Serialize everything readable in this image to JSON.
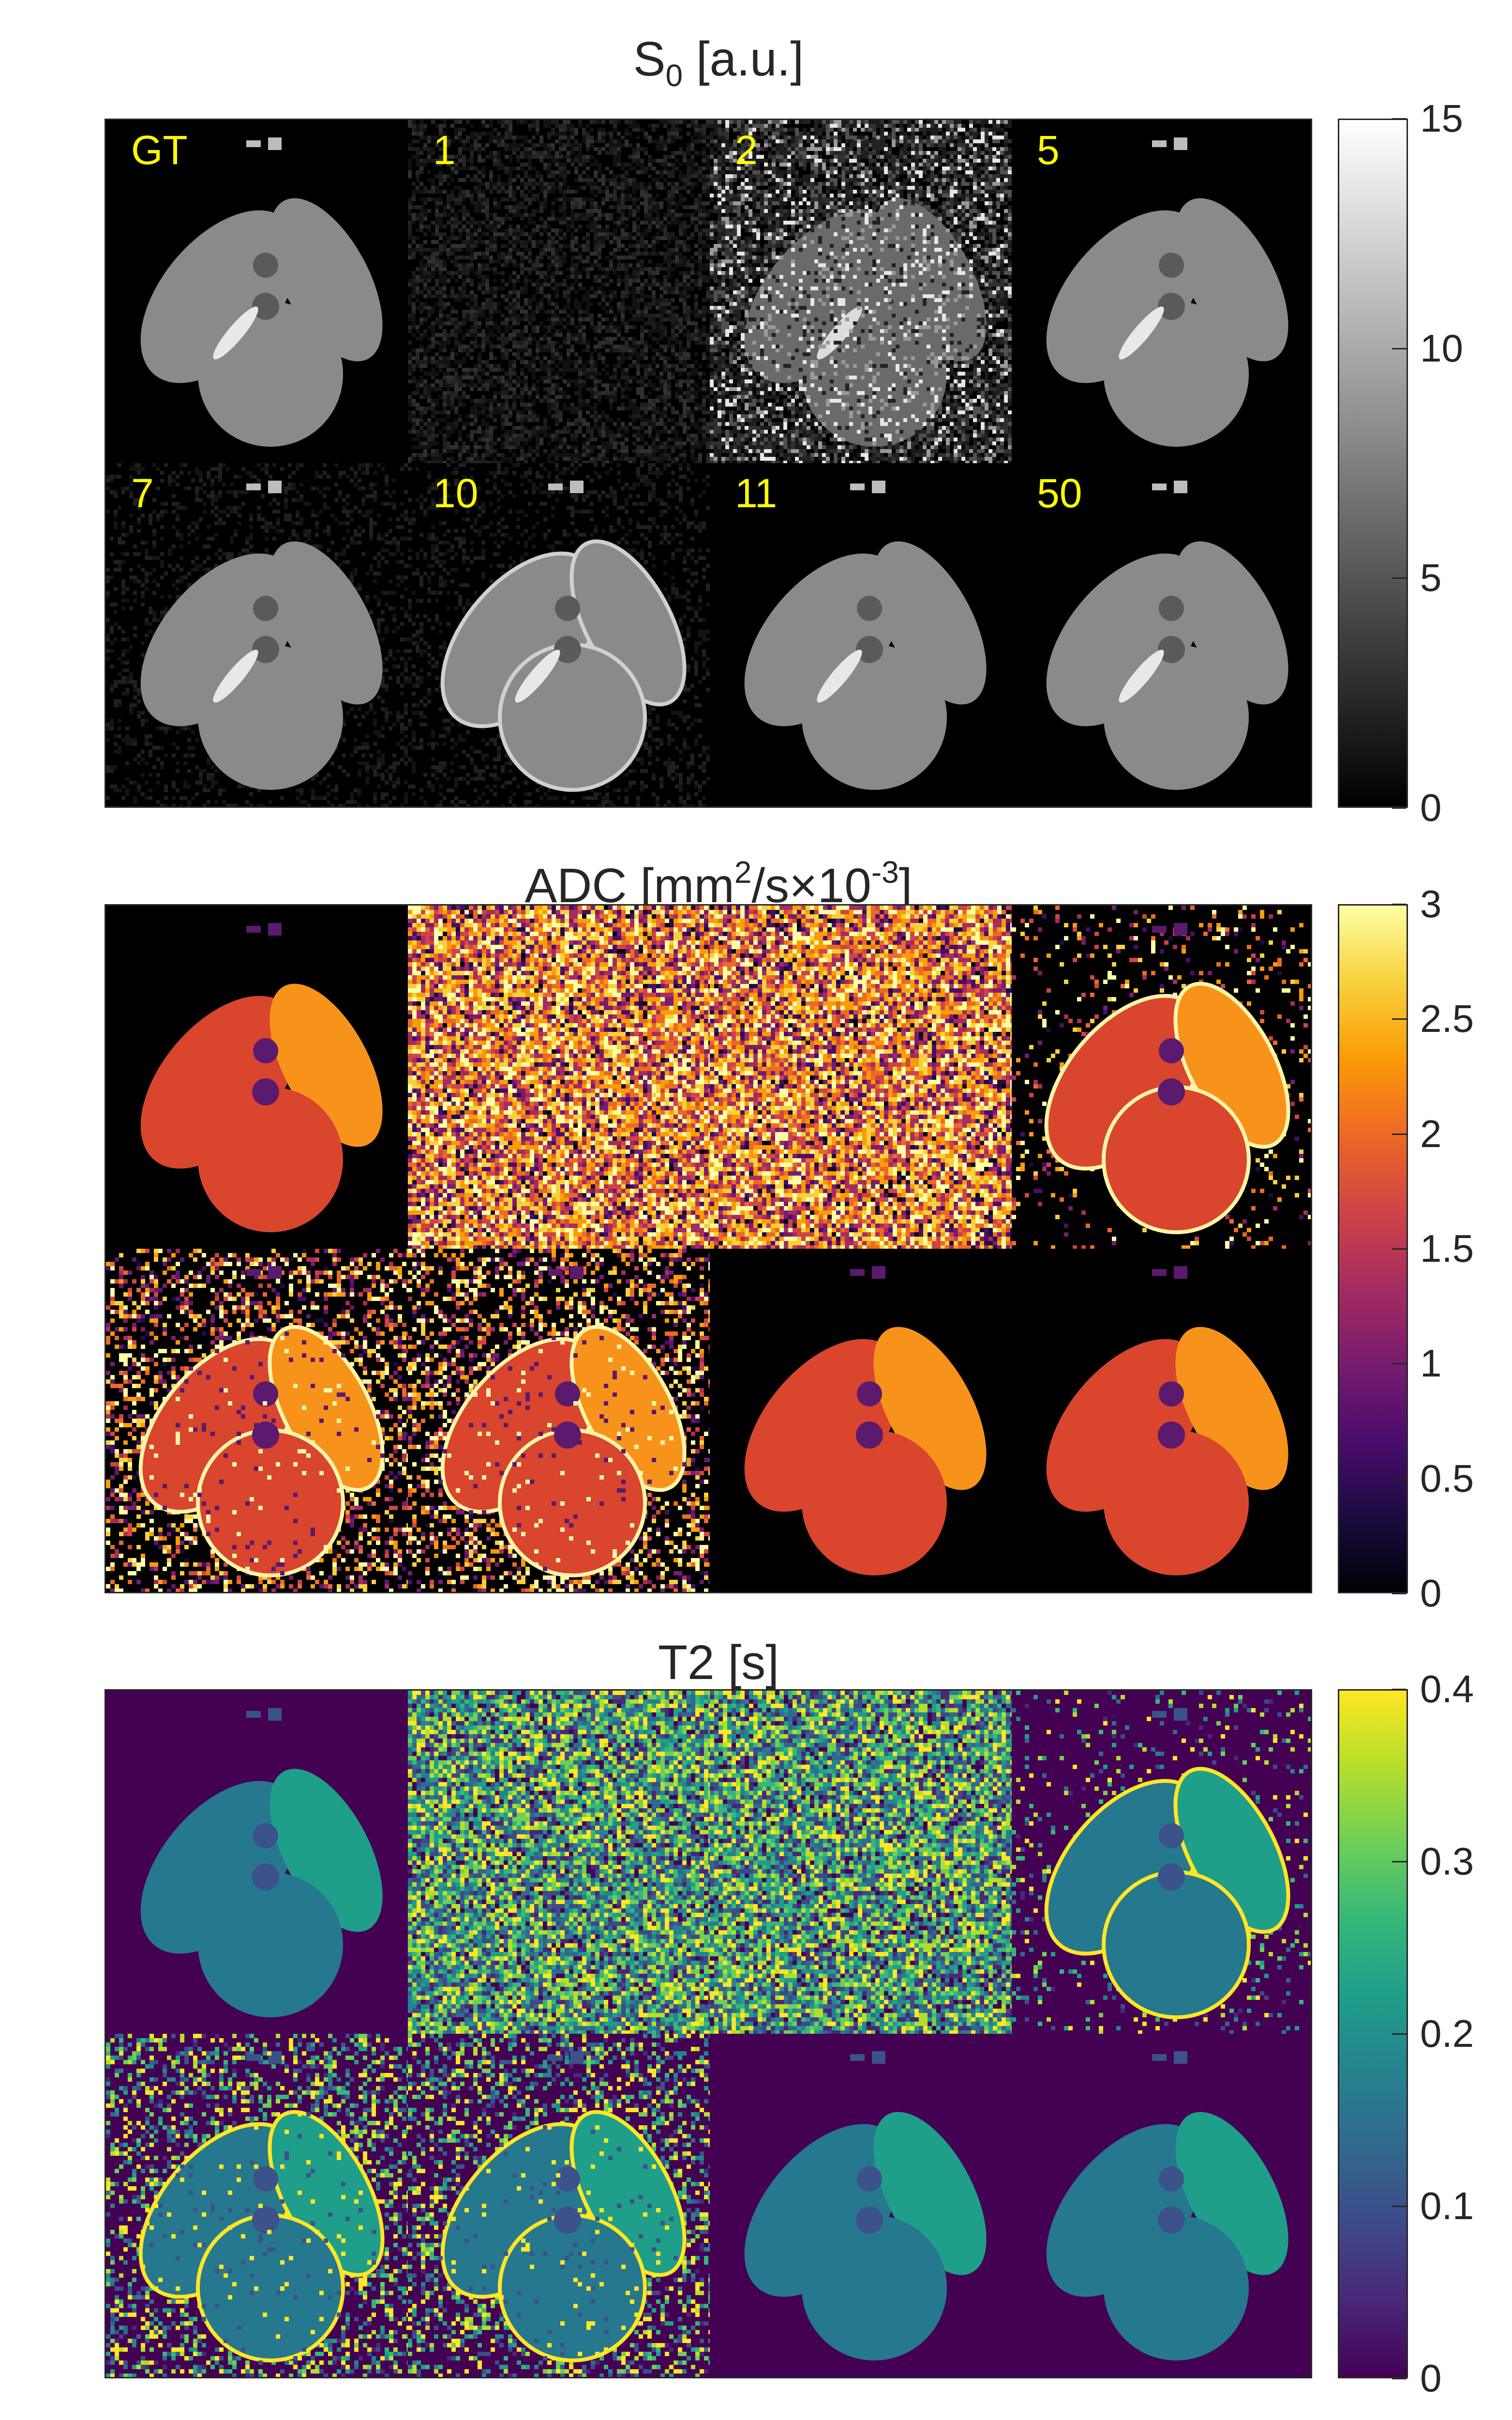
{
  "panels": [
    {
      "id": "s0",
      "title": {
        "base": "S",
        "sub": "0",
        "rest": " [a.u.]"
      },
      "colormap": "gray",
      "colorbar_ticks": [
        "15",
        "10",
        "5",
        "0"
      ],
      "colorbar_tick_values": [
        15,
        10,
        5,
        0
      ],
      "colorbar_range": [
        0,
        15
      ],
      "tile_labels": [
        "GT",
        "1",
        "2",
        "5",
        "7",
        "10",
        "11",
        "50"
      ],
      "colors": {
        "bg": "#000000",
        "organ": "#8a8a8a",
        "bright": "#e8e8e8",
        "dim": "#3a3a3a"
      }
    },
    {
      "id": "adc",
      "title": {
        "pre": "ADC [mm",
        "sup1": "2",
        "mid": "/s×10",
        "sup2": "-3",
        "post": "]"
      },
      "colormap": "inferno",
      "colorbar_ticks": [
        "3",
        "2.5",
        "2",
        "1.5",
        "1",
        "0.5",
        "0"
      ],
      "colorbar_tick_values": [
        3,
        2.5,
        2,
        1.5,
        1,
        0.5,
        0
      ],
      "colorbar_range": [
        0,
        3
      ],
      "colors": {
        "bg": "#000000",
        "organ": "#d9452d",
        "right_kidney": "#f7931b",
        "noise_hi": "#fcf5a8",
        "noise_mid": "#f28a1c",
        "noise_lo": "#5b1a6e"
      }
    },
    {
      "id": "t2",
      "title": {
        "base": "T2 [s]"
      },
      "colormap": "viridis",
      "colorbar_ticks": [
        "0.4",
        "0.3",
        "0.2",
        "0.1",
        "0"
      ],
      "colorbar_tick_values": [
        0.4,
        0.3,
        0.2,
        0.1,
        0
      ],
      "colorbar_range": [
        0,
        0.4
      ],
      "colors": {
        "bg": "#440154",
        "organ": "#26788e",
        "right_kidney": "#1f9e89",
        "noise_hi": "#fde725",
        "noise_mid": "#35b779",
        "noise_lo": "#3b528b"
      }
    }
  ]
}
